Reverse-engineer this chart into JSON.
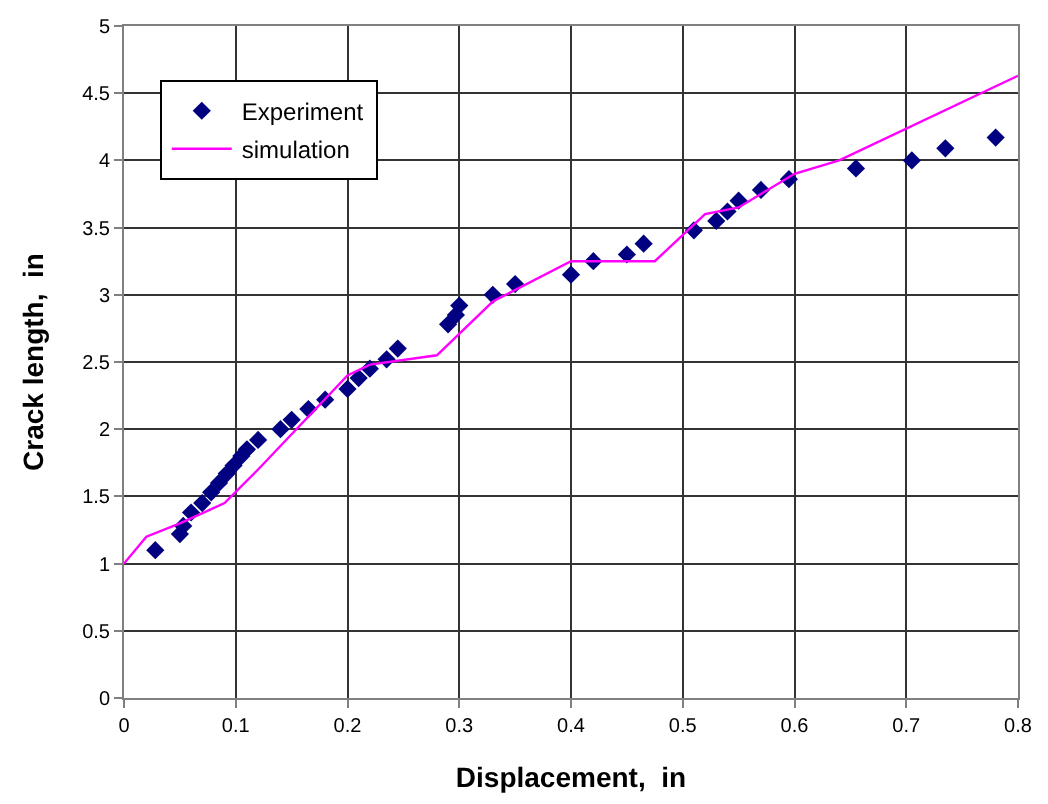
{
  "chart_data": {
    "type": "scatter",
    "xlabel": "Displacement,  in",
    "ylabel": "Crack length,  in",
    "xlim": [
      0,
      0.8
    ],
    "xticks": [
      0,
      0.1,
      0.2,
      0.3,
      0.4,
      0.5,
      0.6,
      0.7,
      0.8
    ],
    "ylim": [
      0,
      5
    ],
    "yticks": [
      0,
      0.5,
      1,
      1.5,
      2,
      2.5,
      3,
      3.5,
      4,
      4.5,
      5
    ],
    "grid": true,
    "legend": "top left",
    "series": [
      {
        "name": "Experiment",
        "marker": "diamond",
        "color": "#000080",
        "x": [
          0.028,
          0.05,
          0.053,
          0.06,
          0.07,
          0.078,
          0.085,
          0.092,
          0.098,
          0.105,
          0.11,
          0.12,
          0.14,
          0.15,
          0.165,
          0.18,
          0.2,
          0.21,
          0.22,
          0.235,
          0.245,
          0.29,
          0.297,
          0.3,
          0.33,
          0.35,
          0.4,
          0.42,
          0.45,
          0.465,
          0.51,
          0.53,
          0.54,
          0.55,
          0.57,
          0.595,
          0.655,
          0.705,
          0.735,
          0.78
        ],
        "values": [
          1.1,
          1.22,
          1.28,
          1.38,
          1.45,
          1.53,
          1.6,
          1.67,
          1.73,
          1.8,
          1.85,
          1.92,
          2.0,
          2.07,
          2.15,
          2.22,
          2.3,
          2.38,
          2.45,
          2.52,
          2.6,
          2.78,
          2.85,
          2.92,
          3.0,
          3.08,
          3.15,
          3.25,
          3.3,
          3.38,
          3.48,
          3.55,
          3.62,
          3.7,
          3.78,
          3.86,
          3.94,
          4.0,
          4.09,
          4.17
        ]
      },
      {
        "name": "simulation",
        "type": "line",
        "line_style": "solid",
        "color": "#ff00ff",
        "x": [
          0,
          0.02,
          0.05,
          0.09,
          0.12,
          0.2,
          0.22,
          0.28,
          0.33,
          0.4,
          0.475,
          0.52,
          0.55,
          0.6,
          0.64,
          0.8
        ],
        "values": [
          1,
          1.2,
          1.3,
          1.45,
          1.7,
          2.4,
          2.48,
          2.55,
          2.95,
          3.25,
          3.25,
          3.6,
          3.65,
          3.9,
          4.0,
          4.63
        ]
      }
    ]
  }
}
